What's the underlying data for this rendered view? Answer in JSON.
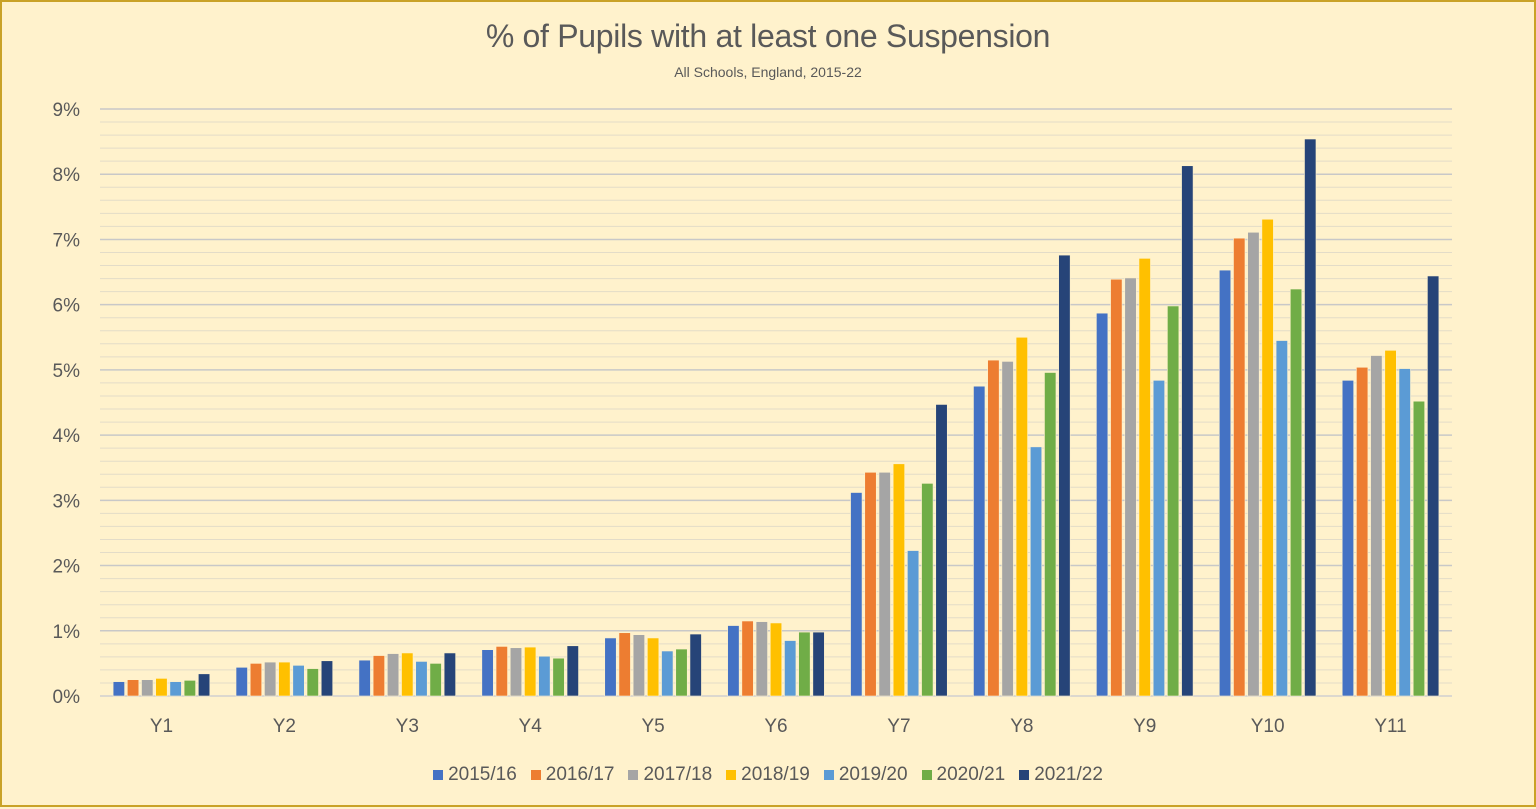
{
  "chart_data": {
    "type": "bar",
    "title": "% of Pupils with at least one Suspension",
    "subtitle": "All Schools, England, 2015-22",
    "xlabel": "",
    "ylabel": "",
    "ylim": [
      0,
      9
    ],
    "yticks": [
      "0%",
      "1%",
      "2%",
      "3%",
      "4%",
      "5%",
      "6%",
      "7%",
      "8%",
      "9%"
    ],
    "grid": {
      "major_step": 1,
      "minor_step": 0.2
    },
    "legend_position": "bottom",
    "categories": [
      "Y1",
      "Y2",
      "Y3",
      "Y4",
      "Y5",
      "Y6",
      "Y7",
      "Y8",
      "Y9",
      "Y10",
      "Y11"
    ],
    "series": [
      {
        "name": "2015/16",
        "color": "#4472C4",
        "values": [
          0.22,
          0.44,
          0.55,
          0.71,
          0.89,
          1.08,
          3.12,
          4.75,
          5.87,
          6.53,
          4.84
        ]
      },
      {
        "name": "2016/17",
        "color": "#ED7D31",
        "values": [
          0.25,
          0.5,
          0.62,
          0.76,
          0.97,
          1.15,
          3.43,
          5.15,
          6.39,
          7.02,
          5.04
        ]
      },
      {
        "name": "2017/18",
        "color": "#A5A5A5",
        "values": [
          0.25,
          0.52,
          0.65,
          0.74,
          0.94,
          1.14,
          3.43,
          5.13,
          6.41,
          7.11,
          5.22
        ]
      },
      {
        "name": "2018/19",
        "color": "#FFC000",
        "values": [
          0.27,
          0.52,
          0.66,
          0.75,
          0.89,
          1.12,
          3.56,
          5.5,
          6.71,
          7.31,
          5.3
        ]
      },
      {
        "name": "2019/20",
        "color": "#5B9BD5",
        "values": [
          0.22,
          0.47,
          0.53,
          0.61,
          0.69,
          0.85,
          2.23,
          3.82,
          4.84,
          5.45,
          5.02
        ]
      },
      {
        "name": "2020/21",
        "color": "#70AD47",
        "values": [
          0.24,
          0.42,
          0.5,
          0.58,
          0.72,
          0.98,
          3.26,
          4.96,
          5.98,
          6.24,
          4.52
        ]
      },
      {
        "name": "2021/22",
        "color": "#264478",
        "values": [
          0.34,
          0.54,
          0.66,
          0.77,
          0.95,
          0.98,
          4.47,
          6.76,
          8.13,
          8.54,
          6.44
        ]
      }
    ]
  }
}
